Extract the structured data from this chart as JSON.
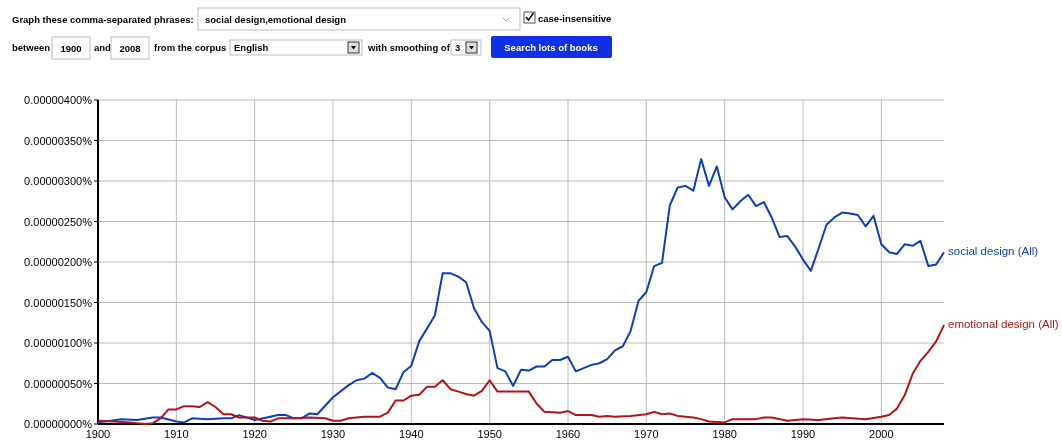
{
  "chart_data": {
    "type": "line",
    "xlim": [
      1900,
      2008
    ],
    "xticks": [
      1900,
      1910,
      1920,
      1930,
      1940,
      1950,
      1960,
      1970,
      1980,
      1990,
      2000
    ],
    "ylim": [
      0,
      4e-06
    ],
    "yticks": [
      {
        "value": 0,
        "label": "0.00000000%"
      },
      {
        "value": 5e-07,
        "label": "0.00000050%"
      },
      {
        "value": 1e-06,
        "label": "0.00000100%"
      },
      {
        "value": 1.5e-06,
        "label": "0.00000150%"
      },
      {
        "value": 2e-06,
        "label": "0.00000200%"
      },
      {
        "value": 2.5e-06,
        "label": "0.00000250%"
      },
      {
        "value": 3e-06,
        "label": "0.00000300%"
      },
      {
        "value": 3.5e-06,
        "label": "0.00000350%"
      },
      {
        "value": 4e-06,
        "label": "0.00000400%"
      }
    ],
    "grid": true,
    "legend": false,
    "marker": "none",
    "line_style": "solid",
    "annotations": [
      "Graph these comma-separated phrases:",
      "social design,emotional design",
      "case-insensitive",
      "between",
      "1900",
      "and",
      "2008",
      "from the corpus",
      "English",
      "with smoothing of",
      "3",
      "Search lots of books"
    ],
    "series": [
      {
        "name": "social design (All)",
        "color": "#0b3fb8",
        "x": [
          1900,
          1903,
          1905,
          1907,
          1908,
          1910,
          1911,
          1912,
          1914,
          1916,
          1917,
          1918,
          1920,
          1922,
          1923,
          1924,
          1925,
          1926,
          1927,
          1928,
          1930,
          1932,
          1933,
          1934,
          1935,
          1936,
          1937,
          1938,
          1939,
          1940,
          1941,
          1942,
          1943,
          1944,
          1945,
          1946,
          1947,
          1948,
          1949,
          1950,
          1951,
          1952,
          1953,
          1954,
          1955,
          1956,
          1957,
          1958,
          1959,
          1960,
          1961,
          1962,
          1963,
          1964,
          1965,
          1966,
          1967,
          1968,
          1969,
          1970,
          1971,
          1972,
          1973,
          1974,
          1975,
          1976,
          1977,
          1978,
          1979,
          1980,
          1981,
          1982,
          1983,
          1984,
          1985,
          1986,
          1987,
          1988,
          1989,
          1990,
          1991,
          1992,
          1993,
          1994,
          1995,
          1996,
          1997,
          1998,
          1999,
          2000,
          2001,
          2002,
          2003,
          2004,
          2005,
          2006,
          2007,
          2008
        ],
        "values": [
          2e-08,
          6e-08,
          5e-08,
          8e-08,
          8e-08,
          3e-08,
          2e-08,
          7e-08,
          6e-08,
          7e-08,
          7e-08,
          1.1e-07,
          5e-08,
          9e-08,
          1.1e-07,
          1.1e-07,
          7e-08,
          7e-08,
          1.3e-07,
          1.2e-07,
          3.3e-07,
          4.8e-07,
          5.4e-07,
          5.6e-07,
          6.3e-07,
          5.7e-07,
          4.5e-07,
          4.3e-07,
          6.4e-07,
          7.2e-07,
          1.02e-06,
          1.18e-06,
          1.34e-06,
          1.86e-06,
          1.86e-06,
          1.82e-06,
          1.75e-06,
          1.43e-06,
          1.26e-06,
          1.15e-06,
          6.9e-07,
          6.5e-07,
          4.7e-07,
          6.7e-07,
          6.6e-07,
          7.1e-07,
          7.1e-07,
          7.9e-07,
          7.9e-07,
          8.3e-07,
          6.5e-07,
          6.9e-07,
          7.3e-07,
          7.5e-07,
          8e-07,
          9.1e-07,
          9.6e-07,
          1.15e-06,
          1.52e-06,
          1.63e-06,
          1.95e-06,
          1.99e-06,
          2.7e-06,
          2.92e-06,
          2.94e-06,
          2.88e-06,
          3.27e-06,
          2.94e-06,
          3.18e-06,
          2.8e-06,
          2.65e-06,
          2.75e-06,
          2.83e-06,
          2.69e-06,
          2.74e-06,
          2.55e-06,
          2.31e-06,
          2.32e-06,
          2.19e-06,
          2.03e-06,
          1.89e-06,
          2.17e-06,
          2.46e-06,
          2.55e-06,
          2.61e-06,
          2.6e-06,
          2.58e-06,
          2.44e-06,
          2.57e-06,
          2.22e-06,
          2.12e-06,
          2.1e-06,
          2.22e-06,
          2.2e-06,
          2.26e-06,
          1.95e-06,
          1.97e-06,
          2.12e-06
        ]
      },
      {
        "name": "emotional design (All)",
        "color": "#b01515",
        "x": [
          1900,
          1902,
          1904,
          1906,
          1907,
          1908,
          1909,
          1910,
          1911,
          1912,
          1913,
          1914,
          1915,
          1916,
          1917,
          1918,
          1919,
          1920,
          1921,
          1922,
          1923,
          1925,
          1927,
          1929,
          1930,
          1931,
          1932,
          1934,
          1936,
          1937,
          1938,
          1939,
          1940,
          1941,
          1942,
          1943,
          1944,
          1945,
          1946,
          1947,
          1948,
          1949,
          1950,
          1951,
          1952,
          1953,
          1954,
          1955,
          1956,
          1957,
          1959,
          1960,
          1961,
          1963,
          1964,
          1965,
          1966,
          1968,
          1970,
          1971,
          1972,
          1973,
          1974,
          1976,
          1977,
          1978,
          1980,
          1981,
          1984,
          1985,
          1986,
          1988,
          1990,
          1992,
          1994,
          1995,
          1998,
          2000,
          2001,
          2002,
          2003,
          2004,
          2005,
          2006,
          2007,
          2008
        ],
        "values": [
          4e-08,
          3e-08,
          2e-08,
          0,
          1e-08,
          7e-08,
          1.8e-07,
          1.8e-07,
          2.2e-07,
          2.2e-07,
          2.1e-07,
          2.7e-07,
          2.1e-07,
          1.2e-07,
          1.2e-07,
          8e-08,
          8e-08,
          8e-08,
          4e-08,
          3e-08,
          7e-08,
          7e-08,
          8e-08,
          7e-08,
          4e-08,
          4e-08,
          7e-08,
          9e-08,
          9e-08,
          1.4e-07,
          2.9e-07,
          2.9e-07,
          3.5e-07,
          3.6e-07,
          4.6e-07,
          4.6e-07,
          5.4e-07,
          4.3e-07,
          4e-07,
          3.7e-07,
          3.5e-07,
          4.1e-07,
          5.4e-07,
          4e-07,
          4e-07,
          4e-07,
          4e-07,
          4e-07,
          2.5e-07,
          1.5e-07,
          1.4e-07,
          1.6e-07,
          1.1e-07,
          1.1e-07,
          9e-08,
          1e-07,
          9e-08,
          1e-07,
          1.2e-07,
          1.5e-07,
          1.2e-07,
          1.3e-07,
          1e-07,
          8e-08,
          6e-08,
          3e-08,
          2e-08,
          6e-08,
          6e-08,
          8e-08,
          8e-08,
          4e-08,
          6e-08,
          5e-08,
          7e-08,
          8e-08,
          6e-08,
          9e-08,
          1.1e-07,
          1.9e-07,
          3.6e-07,
          6.2e-07,
          7.8e-07,
          8.9e-07,
          1.02e-06,
          1.22e-06
        ]
      }
    ]
  }
}
